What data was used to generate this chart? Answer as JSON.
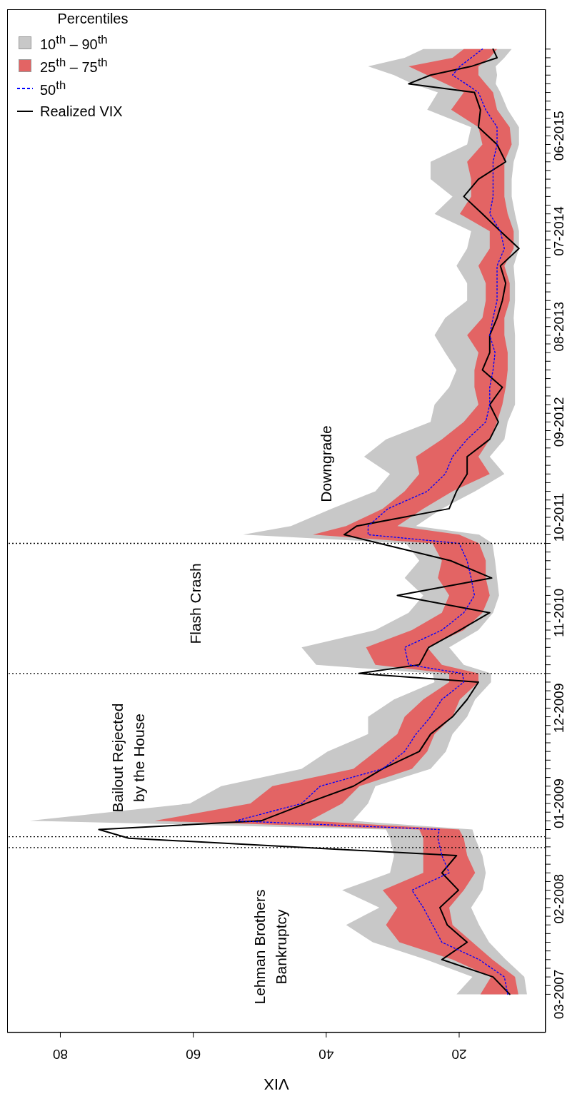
{
  "chart_data": {
    "type": "line",
    "orientation": "horizontal",
    "xlabel": "VIX",
    "legend_title": "Percentiles",
    "legend": "top left",
    "x": [
      "2007-03",
      "2007-05",
      "2007-07",
      "2007-09",
      "2007-11",
      "2008-01",
      "2008-03",
      "2008-05",
      "2008-07",
      "2008-09",
      "2008-10",
      "2008-11",
      "2009-01",
      "2009-03",
      "2009-05",
      "2009-07",
      "2009-09",
      "2009-11",
      "2010-01",
      "2010-03",
      "2010-04",
      "2010-05",
      "2010-07",
      "2010-09",
      "2010-11",
      "2011-01",
      "2011-03",
      "2011-05",
      "2011-07",
      "2011-08",
      "2011-09",
      "2011-11",
      "2012-01",
      "2012-03",
      "2012-05",
      "2012-07",
      "2012-09",
      "2012-11",
      "2013-01",
      "2013-03",
      "2013-05",
      "2013-07",
      "2013-09",
      "2013-11",
      "2014-01",
      "2014-03",
      "2014-05",
      "2014-07",
      "2014-09",
      "2014-11",
      "2015-01",
      "2015-03",
      "2015-05",
      "2015-07",
      "2015-09",
      "2015-11",
      "2015-12",
      "2016-01",
      "2016-02",
      "2016-03",
      "2016-04"
    ],
    "series": [
      {
        "name": "10$^{th}$ – 90$^{th}$",
        "color": "#c8c8c8",
        "values": [
          null,
          null,
          null,
          null,
          null,
          null,
          null,
          null,
          null,
          null,
          null,
          null,
          null,
          null,
          null,
          null,
          null,
          null,
          null,
          null,
          null,
          null,
          null,
          null,
          null,
          null,
          null,
          null,
          null,
          null,
          null,
          null,
          null,
          null,
          null,
          null,
          null,
          null,
          null,
          null,
          null,
          null,
          null,
          null,
          null,
          null,
          null,
          null,
          null,
          null,
          null,
          null,
          null,
          null,
          null,
          null,
          null,
          null,
          null,
          null,
          null
        ],
        "lower": [
          9.8,
          10.2,
          13,
          15.5,
          17,
          18.2,
          16.5,
          16,
          16.5,
          17.6,
          18,
          36,
          33.7,
          32.6,
          24.3,
          22,
          21,
          18.8,
          17.6,
          15.2,
          15.2,
          19.3,
          21.5,
          17.1,
          14.9,
          14,
          14.3,
          14.6,
          15,
          17,
          26.5,
          22.6,
          17.6,
          13.2,
          15.4,
          13.2,
          12.7,
          11.6,
          11.6,
          11.6,
          11.6,
          11.6,
          11.8,
          11.6,
          11.6,
          11.8,
          11,
          11,
          11.6,
          12.1,
          12.1,
          11.8,
          11,
          11,
          12.7,
          13.8,
          14.5,
          14.3,
          14.5,
          13.2,
          12.1
        ],
        "upper": [
          20.4,
          18,
          25,
          33,
          37,
          32,
          37.6,
          30.4,
          29.8,
          30.4,
          31,
          84.6,
          60.5,
          55.8,
          43.7,
          39.8,
          33.7,
          33.7,
          29.8,
          23.7,
          24,
          41.5,
          43.7,
          32.6,
          27.6,
          25.4,
          28.2,
          26,
          28,
          52.5,
          45.3,
          39.2,
          32.6,
          30.4,
          34.3,
          31,
          24.3,
          23.7,
          21.5,
          20.4,
          22.1,
          23.7,
          22.1,
          18.8,
          18.8,
          20.4,
          18.8,
          18.2,
          23.7,
          21,
          24.3,
          24.3,
          18.8,
          18.2,
          24.8,
          23.2,
          27,
          29.8,
          33.7,
          28.2,
          25.4
        ]
      },
      {
        "name": "25$^{th}$ – 75$^{th}$",
        "color": "#e36464",
        "values": [
          null,
          null,
          null,
          null,
          null,
          null,
          null,
          null,
          null,
          null,
          null,
          null,
          null,
          null,
          null,
          null,
          null,
          null,
          null,
          null,
          null,
          null,
          null,
          null,
          null,
          null,
          null,
          null,
          null,
          null,
          null,
          null,
          null,
          null,
          null,
          null,
          null,
          null,
          null,
          null,
          null,
          null,
          null,
          null,
          null,
          null,
          null,
          null,
          null,
          null,
          null,
          null,
          null,
          null,
          null,
          null,
          null,
          null,
          null,
          null,
          null
        ],
        "lower": [
          11.1,
          11.6,
          15,
          18,
          21,
          21.5,
          19.3,
          17.6,
          18.8,
          19.3,
          20,
          42.5,
          37.6,
          35,
          27.1,
          24.8,
          23.7,
          21,
          19.9,
          17.1,
          17.1,
          22.6,
          24.8,
          19.3,
          16.5,
          15.4,
          16,
          16,
          17,
          20,
          29.3,
          25.4,
          21,
          15.4,
          17.1,
          15.4,
          14.3,
          13.5,
          13,
          12.7,
          12.7,
          13.2,
          13.2,
          12.4,
          12.4,
          13.2,
          11.8,
          11.8,
          12.7,
          13.2,
          13.2,
          13.2,
          12.1,
          12.4,
          14.3,
          14.9,
          16,
          17.1,
          17.1,
          15.4,
          14.3
        ],
        "upper": [
          16.8,
          15.2,
          21,
          29,
          31,
          29.3,
          31.5,
          25.4,
          25.4,
          25.4,
          26,
          65.8,
          51.4,
          48.1,
          35.9,
          32.6,
          29.3,
          28.2,
          25.4,
          21.5,
          21.5,
          32.6,
          34,
          27.1,
          22.6,
          21.5,
          23.2,
          22.6,
          24,
          42,
          37,
          31.5,
          28.2,
          26,
          26.5,
          22.6,
          19.3,
          17.1,
          17.7,
          17.7,
          17.1,
          18.8,
          16.5,
          16,
          16,
          17.1,
          15.4,
          15.4,
          19.9,
          18.2,
          18.2,
          18.8,
          16.5,
          17.1,
          21.2,
          19.3,
          22,
          24.8,
          27.6,
          21,
          19.3
        ]
      },
      {
        "name": "50$^{th}$",
        "color": "#0000ff",
        "line_style": "dotted",
        "values": [
          12.7,
          13.2,
          17,
          22.6,
          24,
          25.4,
          27.1,
          21.5,
          22.6,
          23.2,
          23,
          53.6,
          43.7,
          40.9,
          31.5,
          28.2,
          26.5,
          24.3,
          22.6,
          19.3,
          19.5,
          27.6,
          28.2,
          22.6,
          19.3,
          17.7,
          18.2,
          18.8,
          20,
          33.7,
          33.7,
          30.7,
          24.8,
          22.1,
          21,
          18.8,
          16,
          15.4,
          15.4,
          14.9,
          14.6,
          15.4,
          14.9,
          14.3,
          null,
          14.3,
          13.2,
          13.8,
          15.4,
          14.9,
          14.9,
          14.9,
          14.3,
          14.3,
          16,
          17.1,
          19,
          21,
          19.9,
          18.2,
          16.5
        ]
      },
      {
        "name": "Realized VIX",
        "color": "#000000",
        "values": [
          12.4,
          14.9,
          22.6,
          18.8,
          21.8,
          22.9,
          20.1,
          22.6,
          20.4,
          69.7,
          74.2,
          49.8,
          43.1,
          35.9,
          31.5,
          26,
          24.3,
          21,
          18.8,
          17.1,
          35.1,
          26,
          24.6,
          19.9,
          15.4,
          29.3,
          15.1,
          21.3,
          32,
          37.3,
          35.4,
          21.5,
          20.4,
          18.8,
          18.8,
          15.4,
          14.1,
          15.4,
          13.5,
          16.5,
          15.4,
          15.4,
          14.3,
          13.5,
          13,
          13.8,
          11,
          13.8,
          16.5,
          19.3,
          17.1,
          13,
          14.3,
          17.1,
          16.8,
          17.7,
          27.6,
          24.3,
          18.2,
          14.3,
          14.9
        ]
      }
    ],
    "xlim": [
      88,
      7
    ],
    "xticks": [
      20,
      40,
      60,
      80
    ],
    "ylim": [
      "2006-10-19",
      "2016-08-19"
    ],
    "yticks": [
      {
        "value": "2007-03",
        "label": "03-2007"
      },
      {
        "value": "2007-04",
        "label": null
      },
      {
        "value": "2007-05",
        "label": null
      },
      {
        "value": "2007-06",
        "label": null
      },
      {
        "value": "2007-07",
        "label": null
      },
      {
        "value": "2007-08",
        "label": null
      },
      {
        "value": "2007-09",
        "label": null
      },
      {
        "value": "2007-10",
        "label": null
      },
      {
        "value": "2007-11",
        "label": null
      },
      {
        "value": "2007-12",
        "label": null
      },
      {
        "value": "2008-01",
        "label": null
      },
      {
        "value": "2008-02",
        "label": "02-2008"
      },
      {
        "value": "2008-03",
        "label": null
      },
      {
        "value": "2008-04",
        "label": null
      },
      {
        "value": "2008-05",
        "label": null
      },
      {
        "value": "2008-06",
        "label": null
      },
      {
        "value": "2008-07",
        "label": null
      },
      {
        "value": "2008-08",
        "label": null
      },
      {
        "value": "2008-09",
        "label": null
      },
      {
        "value": "2008-10",
        "label": null
      },
      {
        "value": "2008-11",
        "label": null
      },
      {
        "value": "2008-12",
        "label": null
      },
      {
        "value": "2009-01",
        "label": "01-2009"
      },
      {
        "value": "2009-02",
        "label": null
      },
      {
        "value": "2009-03",
        "label": null
      },
      {
        "value": "2009-04",
        "label": null
      },
      {
        "value": "2009-05",
        "label": null
      },
      {
        "value": "2009-06",
        "label": null
      },
      {
        "value": "2009-07",
        "label": null
      },
      {
        "value": "2009-08",
        "label": null
      },
      {
        "value": "2009-09",
        "label": null
      },
      {
        "value": "2009-10",
        "label": null
      },
      {
        "value": "2009-11",
        "label": null
      },
      {
        "value": "2009-12",
        "label": "12-2009"
      },
      {
        "value": "2010-01",
        "label": null
      },
      {
        "value": "2010-02",
        "label": null
      },
      {
        "value": "2010-03",
        "label": null
      },
      {
        "value": "2010-04",
        "label": null
      },
      {
        "value": "2010-05",
        "label": null
      },
      {
        "value": "2010-06",
        "label": null
      },
      {
        "value": "2010-07",
        "label": null
      },
      {
        "value": "2010-08",
        "label": null
      },
      {
        "value": "2010-09",
        "label": null
      },
      {
        "value": "2010-10",
        "label": null
      },
      {
        "value": "2010-11",
        "label": "11-2010"
      },
      {
        "value": "2010-12",
        "label": null
      },
      {
        "value": "2011-01",
        "label": null
      },
      {
        "value": "2011-02",
        "label": null
      },
      {
        "value": "2011-03",
        "label": null
      },
      {
        "value": "2011-04",
        "label": null
      },
      {
        "value": "2011-05",
        "label": null
      },
      {
        "value": "2011-06",
        "label": null
      },
      {
        "value": "2011-07",
        "label": null
      },
      {
        "value": "2011-08",
        "label": null
      },
      {
        "value": "2011-09",
        "label": null
      },
      {
        "value": "2011-10",
        "label": "10-2011"
      },
      {
        "value": "2011-11",
        "label": null
      },
      {
        "value": "2011-12",
        "label": null
      },
      {
        "value": "2012-01",
        "label": null
      },
      {
        "value": "2012-02",
        "label": null
      },
      {
        "value": "2012-03",
        "label": null
      },
      {
        "value": "2012-04",
        "label": null
      },
      {
        "value": "2012-05",
        "label": null
      },
      {
        "value": "2012-06",
        "label": null
      },
      {
        "value": "2012-07",
        "label": null
      },
      {
        "value": "2012-08",
        "label": null
      },
      {
        "value": "2012-09",
        "label": "09-2012"
      },
      {
        "value": "2012-10",
        "label": null
      },
      {
        "value": "2012-11",
        "label": null
      },
      {
        "value": "2012-12",
        "label": null
      },
      {
        "value": "2013-01",
        "label": null
      },
      {
        "value": "2013-02",
        "label": null
      },
      {
        "value": "2013-03",
        "label": null
      },
      {
        "value": "2013-04",
        "label": null
      },
      {
        "value": "2013-05",
        "label": null
      },
      {
        "value": "2013-06",
        "label": null
      },
      {
        "value": "2013-07",
        "label": null
      },
      {
        "value": "2013-08",
        "label": "08-2013"
      },
      {
        "value": "2013-09",
        "label": null
      },
      {
        "value": "2013-10",
        "label": null
      },
      {
        "value": "2013-11",
        "label": null
      },
      {
        "value": "2013-12",
        "label": null
      },
      {
        "value": "2014-01",
        "label": null
      },
      {
        "value": "2014-02",
        "label": null
      },
      {
        "value": "2014-03",
        "label": null
      },
      {
        "value": "2014-04",
        "label": null
      },
      {
        "value": "2014-05",
        "label": null
      },
      {
        "value": "2014-06",
        "label": null
      },
      {
        "value": "2014-07",
        "label": "07-2014"
      },
      {
        "value": "2014-08",
        "label": null
      },
      {
        "value": "2014-09",
        "label": null
      },
      {
        "value": "2014-10",
        "label": null
      },
      {
        "value": "2014-11",
        "label": null
      },
      {
        "value": "2014-12",
        "label": null
      },
      {
        "value": "2015-01",
        "label": null
      },
      {
        "value": "2015-02",
        "label": null
      },
      {
        "value": "2015-03",
        "label": null
      },
      {
        "value": "2015-04",
        "label": null
      },
      {
        "value": "2015-05",
        "label": null
      },
      {
        "value": "2015-06",
        "label": "06-2015"
      },
      {
        "value": "2015-07",
        "label": null
      },
      {
        "value": "2015-08",
        "label": null
      },
      {
        "value": "2015-09",
        "label": null
      },
      {
        "value": "2015-10",
        "label": null
      },
      {
        "value": "2015-11",
        "label": null
      },
      {
        "value": "2015-12",
        "label": null
      },
      {
        "value": "2016-01",
        "label": null
      },
      {
        "value": "2016-02",
        "label": null
      },
      {
        "value": "2016-03",
        "label": null
      },
      {
        "value": "2016-04",
        "label": null
      }
    ],
    "ref_lines": [
      {
        "axis": "y",
        "value": "2008-07-29",
        "line_style": "dotted"
      },
      {
        "axis": "y",
        "value": "2008-09-06",
        "line_style": "dotted"
      },
      {
        "axis": "y",
        "value": "2010-04",
        "line_style": "dotted"
      },
      {
        "axis": "y",
        "value": "2011-07",
        "line_style": "dotted"
      }
    ],
    "annotations": [
      "Lehman Brothers\nBankruptcy",
      "Bailout Rejected\nby the House",
      "Flash Crash",
      "Downgrade"
    ]
  }
}
